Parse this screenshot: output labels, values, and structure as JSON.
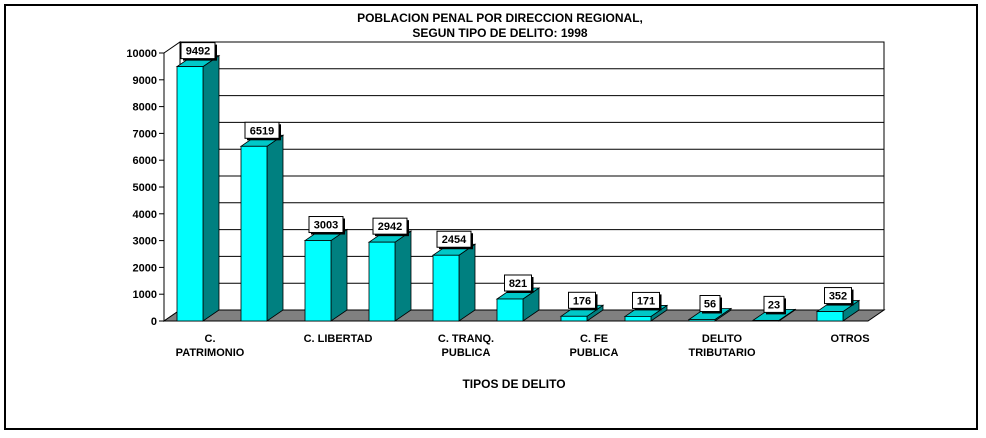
{
  "chart_data": {
    "type": "bar",
    "title_lines": [
      "POBLACION PENAL POR DIRECCION REGIONAL,",
      "SEGUN TIPO DE DELITO: 1998"
    ],
    "xlabel": "TIPOS DE DELITO",
    "ylabel": "",
    "ylim": [
      0,
      10000
    ],
    "yticks": [
      0,
      1000,
      2000,
      3000,
      4000,
      5000,
      6000,
      7000,
      8000,
      9000,
      10000
    ],
    "grid": true,
    "categories": [
      [
        "C.",
        "PATRIMONIO"
      ],
      [],
      [
        "C. LIBERTAD"
      ],
      [],
      [
        "C. TRANQ.",
        "PUBLICA"
      ],
      [],
      [
        "C. FE",
        "PUBLICA"
      ],
      [],
      [
        "DELITO",
        "TRIBUTARIO"
      ],
      [],
      [
        "OTROS"
      ]
    ],
    "values": [
      9492,
      6519,
      3003,
      2942,
      2454,
      821,
      176,
      171,
      56,
      23,
      352
    ],
    "data_labels": [
      "9492",
      "6519",
      "3003",
      "2942",
      "2454",
      "821",
      "176",
      "171",
      "56",
      "23",
      "352"
    ],
    "colors": {
      "bar_front": "#00FFFF",
      "bar_side": "#008080",
      "bar_top": "#00C8C8",
      "floor": "#808080",
      "grid": "#000000"
    }
  }
}
